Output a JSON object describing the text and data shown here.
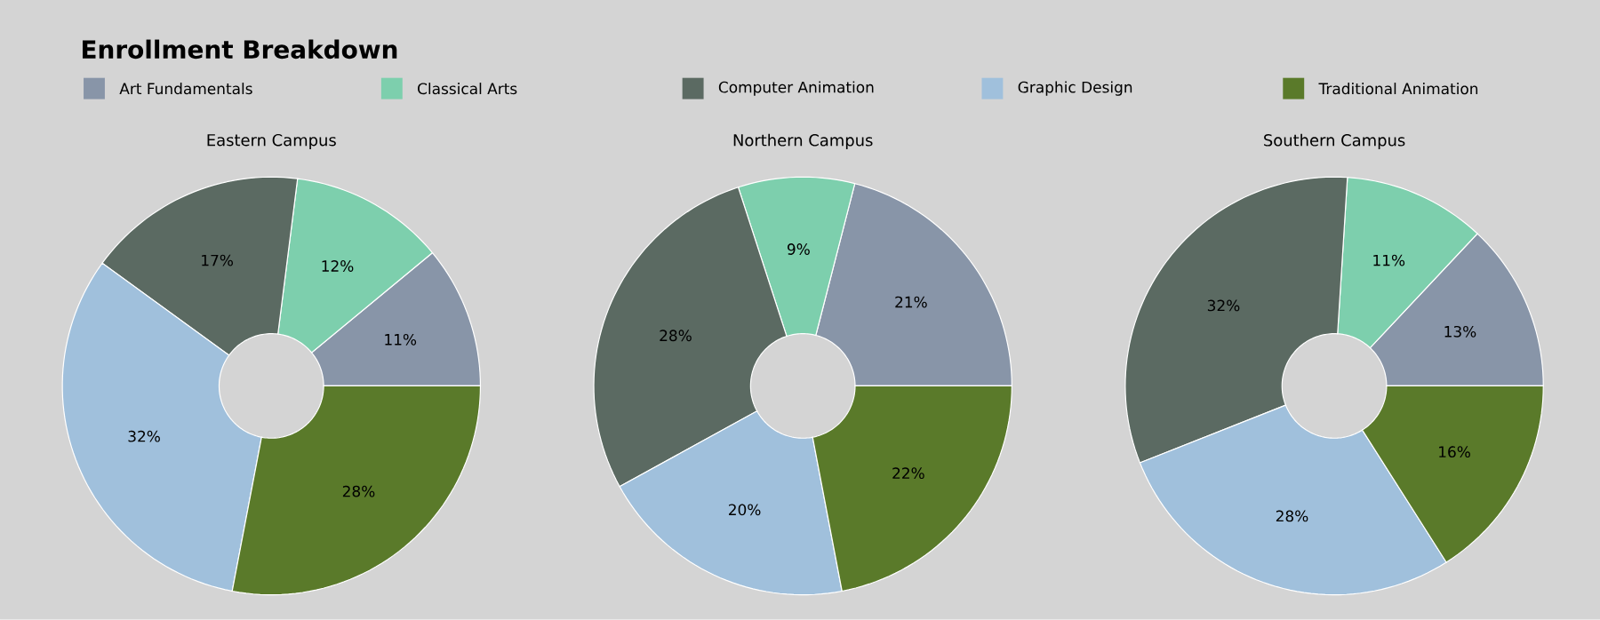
{
  "chart_data": [
    {
      "type": "donut",
      "title": "Enrollment Breakdown",
      "subtitle": "Eastern Campus",
      "legend": "top",
      "categories": [
        "Art Fundamentals",
        "Classical Arts",
        "Computer Animation",
        "Graphic Design",
        "Traditional Animation"
      ],
      "values": [
        11,
        12,
        17,
        32,
        28
      ],
      "value_labels": [
        "11%",
        "12%",
        "17%",
        "32%",
        "28%"
      ],
      "colors": [
        "#8895a8",
        "#7dcfad",
        "#5b6a62",
        "#a0c0dc",
        "#5a7a2a"
      ]
    },
    {
      "type": "donut",
      "subtitle": "Northern Campus",
      "categories": [
        null,
        null,
        null,
        null,
        null
      ],
      "values": [
        21,
        9,
        28,
        20,
        22
      ],
      "value_labels": [
        "21%",
        "9%",
        "28%",
        "20%",
        "22%"
      ],
      "colors": [
        "#8895a8",
        "#7dcfad",
        "#5b6a62",
        "#a0c0dc",
        "#5a7a2a"
      ]
    },
    {
      "type": "donut",
      "subtitle": "Southern Campus",
      "categories": [
        null,
        null,
        null,
        null,
        null
      ],
      "values": [
        13,
        11,
        32,
        28,
        16
      ],
      "value_labels": [
        "13%",
        "11%",
        "32%",
        "28%",
        "16%"
      ],
      "colors": [
        "#8895a8",
        "#7dcfad",
        "#5b6a62",
        "#a0c0dc",
        "#5a7a2a"
      ]
    }
  ]
}
